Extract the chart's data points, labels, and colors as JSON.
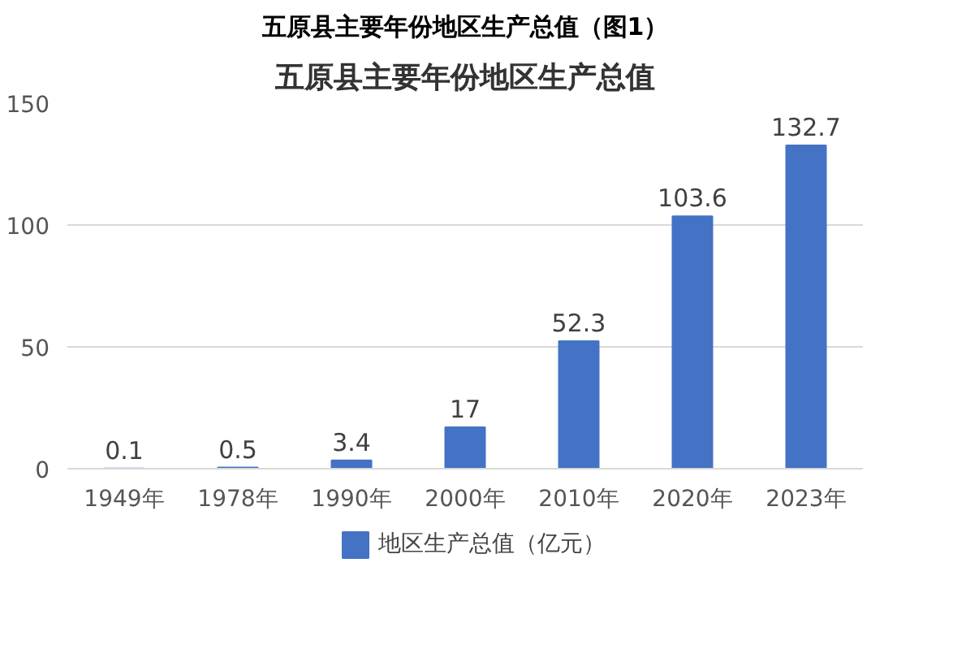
{
  "chart_data": {
    "type": "bar",
    "title": "五原县主要年份地区生产总值（图1）",
    "subtitle": "五原县主要年份地区生产总值",
    "categories": [
      "1949年",
      "1978年",
      "1990年",
      "2000年",
      "2010年",
      "2020年",
      "2023年"
    ],
    "series": [
      {
        "name": "地区生产总值（亿元）",
        "color": "#4472c4",
        "values": [
          0.1,
          0.5,
          3.4,
          17,
          52.3,
          103.6,
          132.7
        ]
      }
    ],
    "ylim": [
      0,
      150
    ],
    "yticks": [
      0,
      50,
      100,
      150
    ],
    "grid": "y",
    "legend": "bottom",
    "data_labels": true
  }
}
